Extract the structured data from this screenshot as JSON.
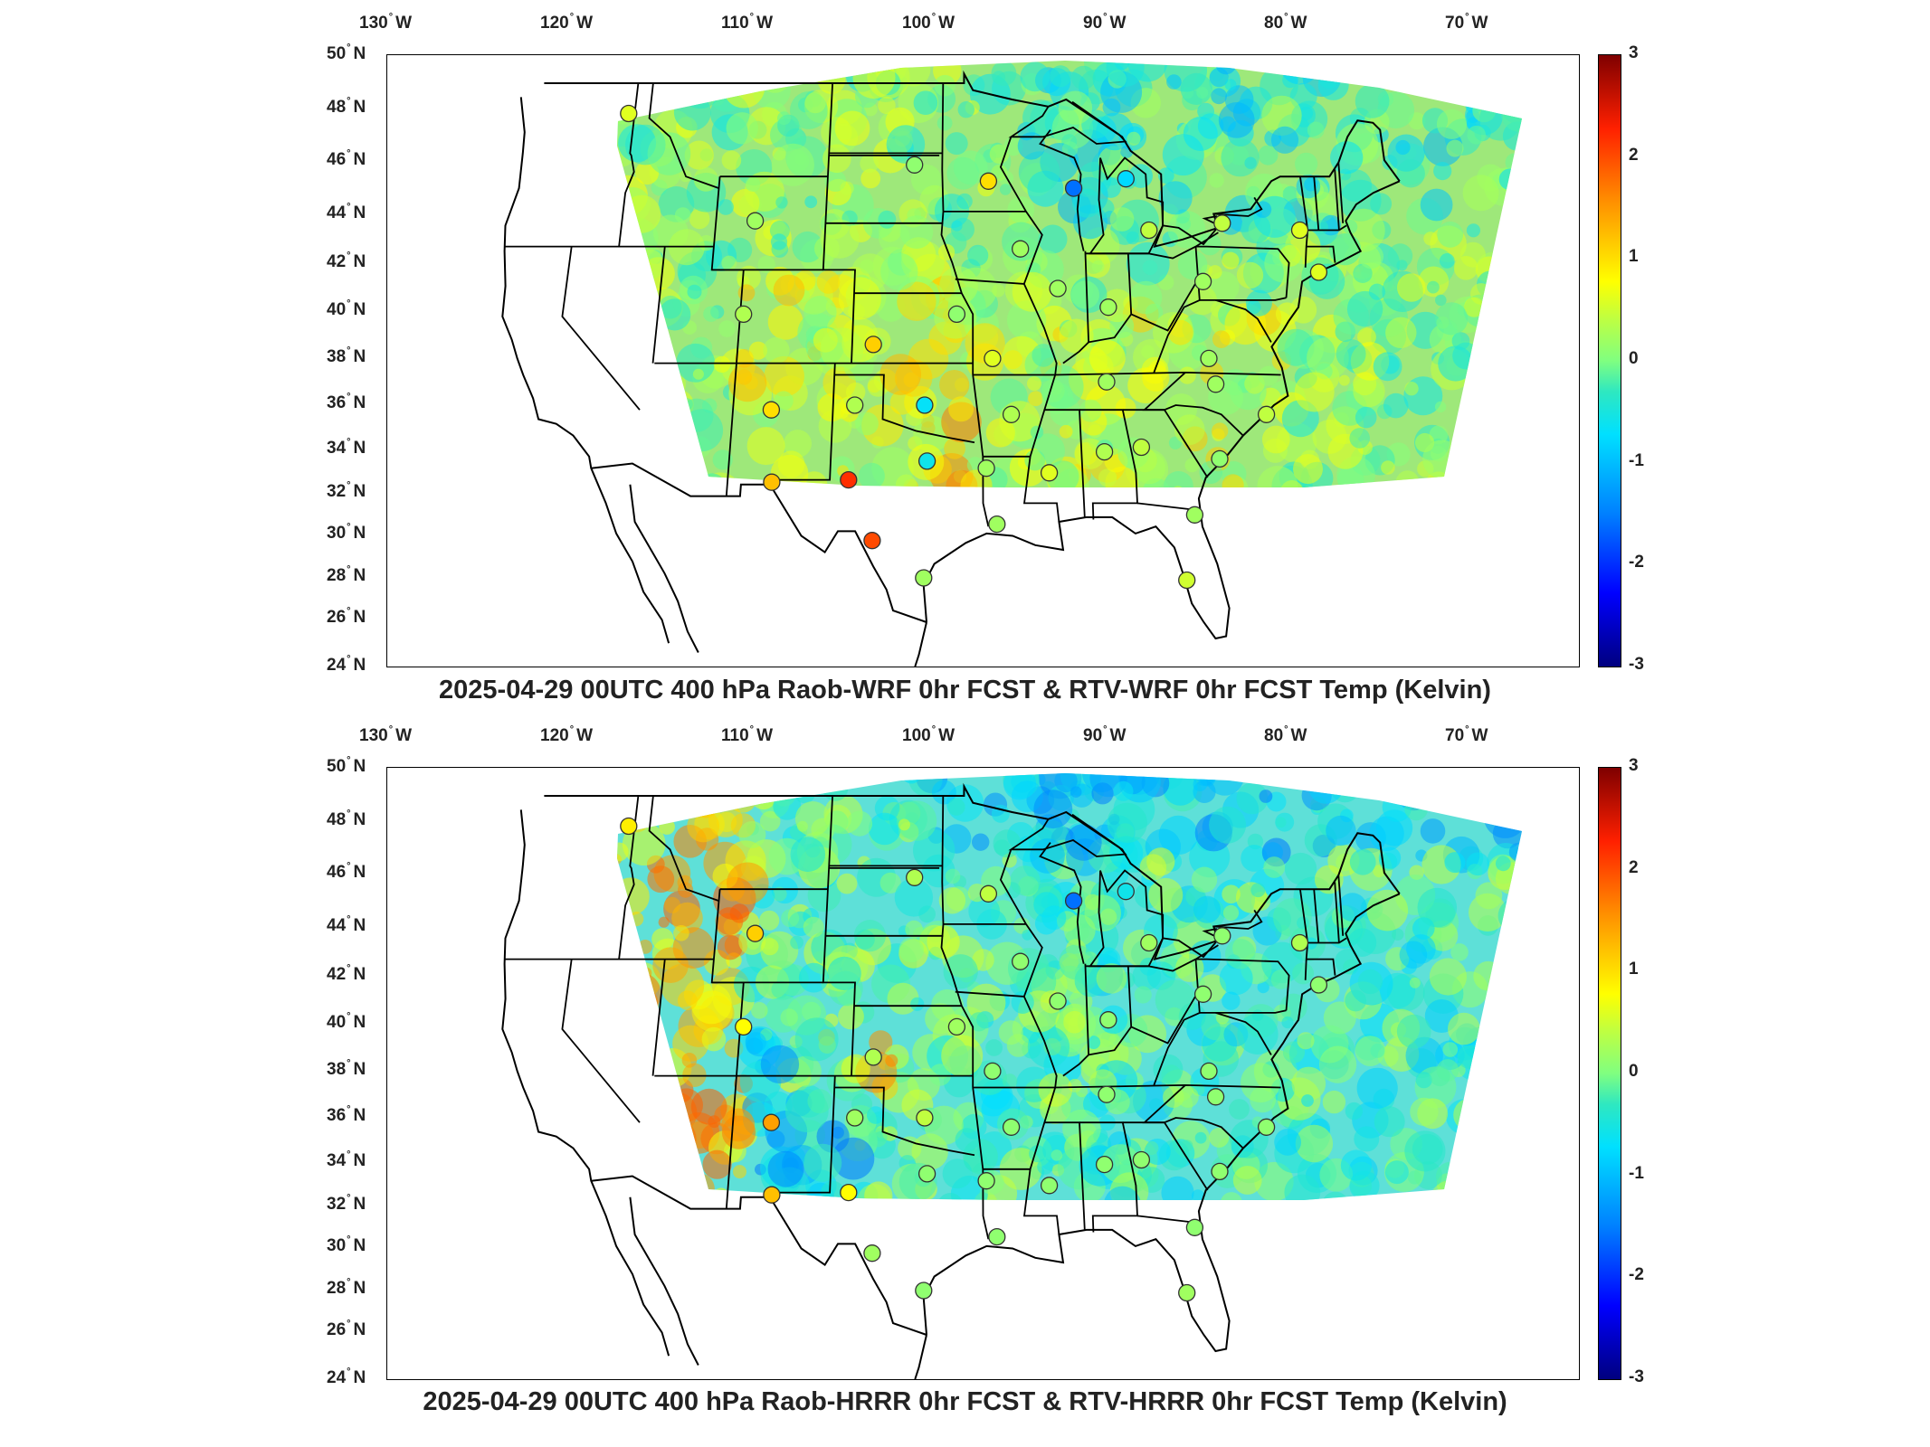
{
  "longitude_labels": [
    {
      "deg": "130",
      "hem": "W"
    },
    {
      "deg": "120",
      "hem": "W"
    },
    {
      "deg": "110",
      "hem": "W"
    },
    {
      "deg": "100",
      "hem": "W"
    },
    {
      "deg": "90",
      "hem": "W"
    },
    {
      "deg": "80",
      "hem": "W"
    },
    {
      "deg": "70",
      "hem": "W"
    }
  ],
  "latitude_labels": [
    {
      "deg": "50",
      "hem": "N"
    },
    {
      "deg": "48",
      "hem": "N"
    },
    {
      "deg": "46",
      "hem": "N"
    },
    {
      "deg": "44",
      "hem": "N"
    },
    {
      "deg": "42",
      "hem": "N"
    },
    {
      "deg": "40",
      "hem": "N"
    },
    {
      "deg": "38",
      "hem": "N"
    },
    {
      "deg": "36",
      "hem": "N"
    },
    {
      "deg": "34",
      "hem": "N"
    },
    {
      "deg": "32",
      "hem": "N"
    },
    {
      "deg": "30",
      "hem": "N"
    },
    {
      "deg": "28",
      "hem": "N"
    },
    {
      "deg": "26",
      "hem": "N"
    },
    {
      "deg": "24",
      "hem": "N"
    }
  ],
  "colorbar": {
    "min": -3,
    "max": 3,
    "labels": [
      "3",
      "2",
      "1",
      "0",
      "-1",
      "-2",
      "-3"
    ],
    "colors": [
      "#00007f",
      "#0000ff",
      "#0080ff",
      "#00e0ff",
      "#80ff80",
      "#ffff00",
      "#ff9000",
      "#ff2000",
      "#7f0000"
    ]
  },
  "panels": [
    {
      "id": "top",
      "title": "2025-04-29 00UTC 400 hPa Raob-WRF 0hr FCST & RTV-WRF 0hr FCST Temp (Kelvin)",
      "field_base_color": "#9ee87a",
      "stations": [
        {
          "lon": -117.4,
          "lat": 47.7,
          "value": 0.6
        },
        {
          "lon": -108.5,
          "lat": 43.1,
          "value": 0.2
        },
        {
          "lon": -108.8,
          "lat": 39.1,
          "value": 0.3
        },
        {
          "lon": -106.7,
          "lat": 35.0,
          "value": 1.0
        },
        {
          "lon": -106.4,
          "lat": 31.9,
          "value": 1.2
        },
        {
          "lon": -101.9,
          "lat": 32.0,
          "value": 2.2
        },
        {
          "lon": -100.4,
          "lat": 29.4,
          "value": 2.0
        },
        {
          "lon": -101.7,
          "lat": 35.2,
          "value": 0.3
        },
        {
          "lon": -100.7,
          "lat": 37.8,
          "value": 1.1
        },
        {
          "lon": -97.5,
          "lat": 35.2,
          "value": -0.7
        },
        {
          "lon": -97.3,
          "lat": 32.8,
          "value": -0.6
        },
        {
          "lon": -95.6,
          "lat": 39.1,
          "value": 0.1
        },
        {
          "lon": -97.4,
          "lat": 27.8,
          "value": 0.2
        },
        {
          "lon": -98.4,
          "lat": 45.5,
          "value": 0.1
        },
        {
          "lon": -93.6,
          "lat": 44.8,
          "value": 1.0
        },
        {
          "lon": -91.6,
          "lat": 41.9,
          "value": 0.2
        },
        {
          "lon": -89.3,
          "lat": 40.2,
          "value": 0.2
        },
        {
          "lon": -93.4,
          "lat": 37.2,
          "value": 0.6
        },
        {
          "lon": -92.3,
          "lat": 34.8,
          "value": 0.3
        },
        {
          "lon": -93.8,
          "lat": 32.5,
          "value": 0.2
        },
        {
          "lon": -93.2,
          "lat": 30.1,
          "value": 0.2
        },
        {
          "lon": -90.1,
          "lat": 32.3,
          "value": 0.6
        },
        {
          "lon": -88.1,
          "lat": 44.5,
          "value": -1.6
        },
        {
          "lon": -84.7,
          "lat": 44.9,
          "value": -0.8
        },
        {
          "lon": -83.4,
          "lat": 42.7,
          "value": 0.4
        },
        {
          "lon": -80.2,
          "lat": 40.5,
          "value": 0.2
        },
        {
          "lon": -78.7,
          "lat": 43.0,
          "value": 0.4
        },
        {
          "lon": -73.8,
          "lat": 42.7,
          "value": 0.6
        },
        {
          "lon": -72.9,
          "lat": 40.9,
          "value": 0.6
        },
        {
          "lon": -86.5,
          "lat": 36.2,
          "value": 0.2
        },
        {
          "lon": -86.2,
          "lat": 39.4,
          "value": 0.2
        },
        {
          "lon": -86.8,
          "lat": 33.2,
          "value": 0.3
        },
        {
          "lon": -84.6,
          "lat": 33.4,
          "value": 0.4
        },
        {
          "lon": -80.0,
          "lat": 32.9,
          "value": 0.1
        },
        {
          "lon": -80.2,
          "lat": 37.2,
          "value": 0.2
        },
        {
          "lon": -79.9,
          "lat": 36.1,
          "value": 0.2
        },
        {
          "lon": -77.0,
          "lat": 34.8,
          "value": 0.4
        },
        {
          "lon": -81.7,
          "lat": 30.5,
          "value": 0.2
        },
        {
          "lon": -82.4,
          "lat": 27.7,
          "value": 0.5
        }
      ]
    },
    {
      "id": "bottom",
      "title": "2025-04-29 00UTC 400 hPa Raob-HRRR 0hr FCST & RTV-HRRR 0hr FCST Temp (Kelvin)",
      "field_base_color": "#5ee0d8",
      "stations": [
        {
          "lon": -117.4,
          "lat": 47.7,
          "value": 0.9
        },
        {
          "lon": -108.5,
          "lat": 43.1,
          "value": 1.1
        },
        {
          "lon": -108.8,
          "lat": 39.1,
          "value": 0.8
        },
        {
          "lon": -106.7,
          "lat": 35.0,
          "value": 1.4
        },
        {
          "lon": -106.4,
          "lat": 31.9,
          "value": 1.2
        },
        {
          "lon": -101.9,
          "lat": 32.0,
          "value": 0.8
        },
        {
          "lon": -100.4,
          "lat": 29.4,
          "value": 0.2
        },
        {
          "lon": -101.7,
          "lat": 35.2,
          "value": 0.2
        },
        {
          "lon": -100.7,
          "lat": 37.8,
          "value": 0.3
        },
        {
          "lon": -97.5,
          "lat": 35.2,
          "value": 0.4
        },
        {
          "lon": -97.3,
          "lat": 32.8,
          "value": 0.1
        },
        {
          "lon": -95.6,
          "lat": 39.1,
          "value": 0.2
        },
        {
          "lon": -97.4,
          "lat": 27.8,
          "value": 0.1
        },
        {
          "lon": -98.4,
          "lat": 45.5,
          "value": 0.3
        },
        {
          "lon": -93.6,
          "lat": 44.8,
          "value": 0.4
        },
        {
          "lon": -91.6,
          "lat": 41.9,
          "value": 0.1
        },
        {
          "lon": -89.3,
          "lat": 40.2,
          "value": 0.1
        },
        {
          "lon": -93.4,
          "lat": 37.2,
          "value": 0.1
        },
        {
          "lon": -92.3,
          "lat": 34.8,
          "value": 0.1
        },
        {
          "lon": -93.8,
          "lat": 32.5,
          "value": 0.1
        },
        {
          "lon": -93.2,
          "lat": 30.1,
          "value": 0.1
        },
        {
          "lon": -90.1,
          "lat": 32.3,
          "value": 0.1
        },
        {
          "lon": -88.1,
          "lat": 44.5,
          "value": -1.6
        },
        {
          "lon": -84.7,
          "lat": 44.9,
          "value": -0.6
        },
        {
          "lon": -83.4,
          "lat": 42.7,
          "value": 0.2
        },
        {
          "lon": -80.2,
          "lat": 40.5,
          "value": 0.1
        },
        {
          "lon": -78.7,
          "lat": 43.0,
          "value": 0.1
        },
        {
          "lon": -73.8,
          "lat": 42.7,
          "value": 0.3
        },
        {
          "lon": -72.9,
          "lat": 40.9,
          "value": 0.1
        },
        {
          "lon": -86.5,
          "lat": 36.2,
          "value": 0.1
        },
        {
          "lon": -86.2,
          "lat": 39.4,
          "value": 0.1
        },
        {
          "lon": -86.8,
          "lat": 33.2,
          "value": 0.1
        },
        {
          "lon": -84.6,
          "lat": 33.4,
          "value": 0.1
        },
        {
          "lon": -80.0,
          "lat": 32.9,
          "value": 0.1
        },
        {
          "lon": -80.2,
          "lat": 37.2,
          "value": 0.1
        },
        {
          "lon": -79.9,
          "lat": 36.1,
          "value": 0.1
        },
        {
          "lon": -77.0,
          "lat": 34.8,
          "value": 0.1
        },
        {
          "lon": -81.7,
          "lat": 30.5,
          "value": 0.1
        },
        {
          "lon": -82.4,
          "lat": 27.7,
          "value": 0.2
        }
      ]
    }
  ]
}
